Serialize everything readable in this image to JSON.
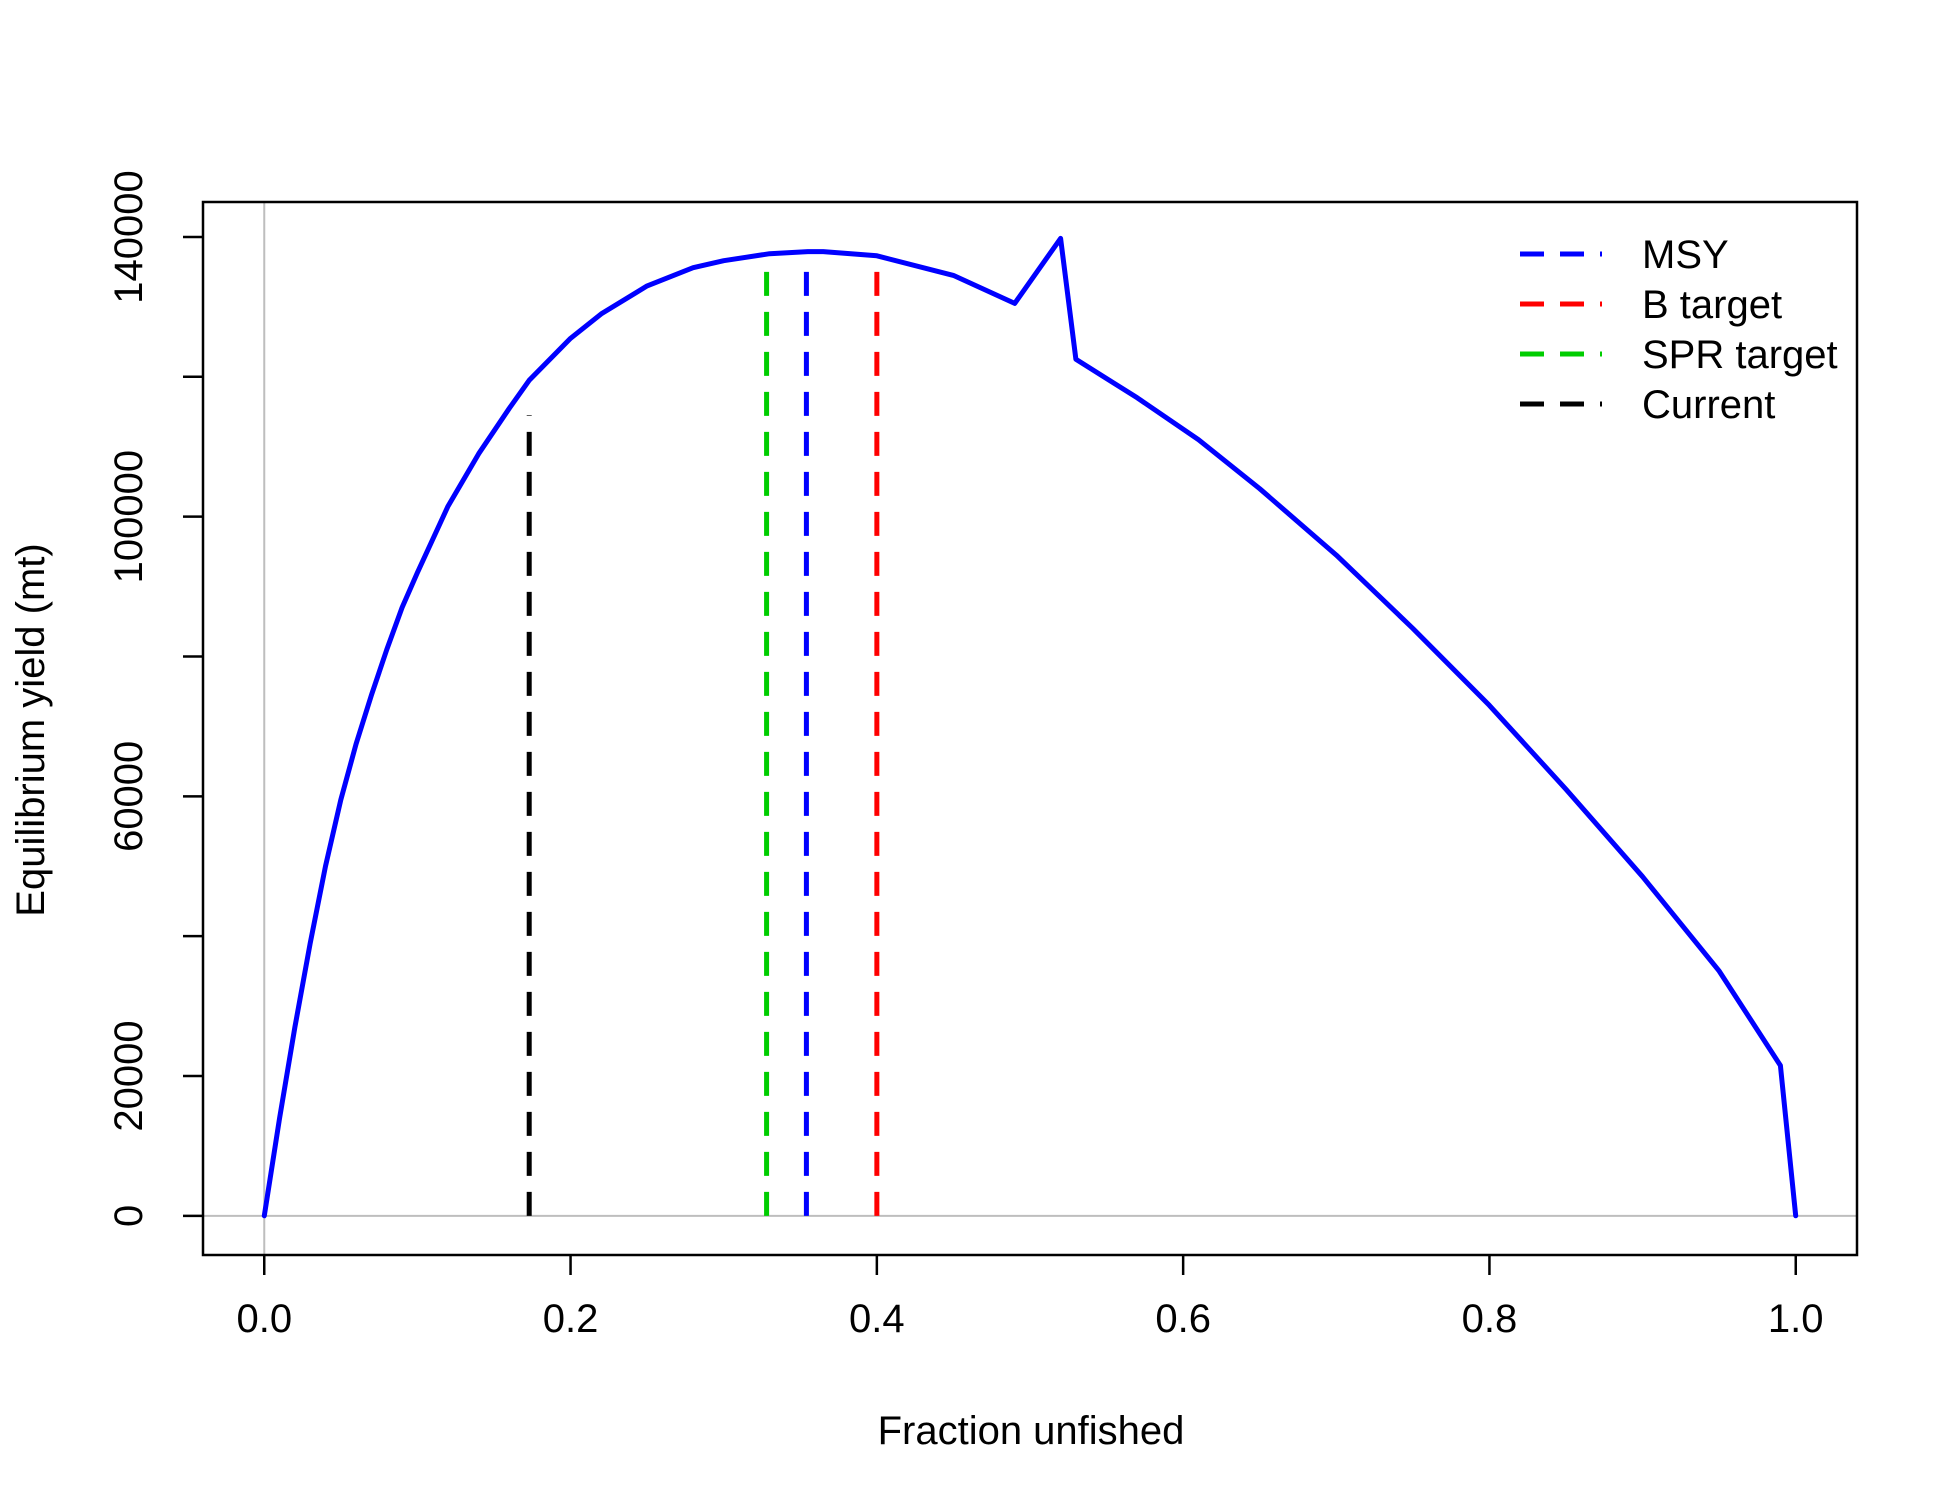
{
  "chart_data": {
    "type": "line",
    "title": "",
    "xlabel": "Fraction unfished",
    "ylabel": "Equilibrium yield (mt)",
    "xlim": [
      -0.04,
      1.04
    ],
    "ylim": [
      -5600,
      145000
    ],
    "x_ticks": [
      {
        "value": 0.0,
        "label": "0.0"
      },
      {
        "value": 0.2,
        "label": "0.2"
      },
      {
        "value": 0.4,
        "label": "0.4"
      },
      {
        "value": 0.6,
        "label": "0.6"
      },
      {
        "value": 0.8,
        "label": "0.8"
      },
      {
        "value": 1.0,
        "label": "1.0"
      }
    ],
    "y_ticks": [
      {
        "value": 0,
        "label": "0"
      },
      {
        "value": 20000,
        "label": "20000"
      },
      {
        "value": 40000,
        "label": ""
      },
      {
        "value": 60000,
        "label": "60000"
      },
      {
        "value": 80000,
        "label": ""
      },
      {
        "value": 100000,
        "label": "100000"
      },
      {
        "value": 120000,
        "label": ""
      },
      {
        "value": 140000,
        "label": "140000"
      }
    ],
    "grid": false,
    "reference_lines": {
      "x": 0,
      "y": 0,
      "color": "#bebebe"
    },
    "legend": {
      "position": "top-right",
      "entries": [
        {
          "label": "MSY",
          "color": "#0000ff",
          "style": "dashed"
        },
        {
          "label": "B target",
          "color": "#ff0000",
          "style": "dashed"
        },
        {
          "label": "SPR target",
          "color": "#00cd00",
          "style": "dashed"
        },
        {
          "label": "Current",
          "color": "#000000",
          "style": "dashed"
        }
      ]
    },
    "series": [
      {
        "color": "#0000ff",
        "style": "solid",
        "x": [
          0.0,
          0.01,
          0.02,
          0.03,
          0.04,
          0.05,
          0.06,
          0.07,
          0.08,
          0.09,
          0.1,
          0.12,
          0.14,
          0.16,
          0.173,
          0.2,
          0.22,
          0.25,
          0.28,
          0.3,
          0.33,
          0.355,
          0.365,
          0.4,
          0.45,
          0.49,
          0.52,
          0.53,
          0.57,
          0.61,
          0.65,
          0.7,
          0.75,
          0.8,
          0.85,
          0.9,
          0.95,
          0.99,
          1.0
        ],
        "values": [
          0,
          14000,
          27000,
          39000,
          50000,
          59500,
          67500,
          74500,
          81000,
          87000,
          92000,
          101500,
          109000,
          115500,
          119500,
          125500,
          129000,
          133000,
          135600,
          136600,
          137600,
          137900,
          137900,
          137300,
          134500,
          130500,
          139800,
          122500,
          117000,
          111000,
          104000,
          94500,
          84000,
          73000,
          61000,
          48500,
          35000,
          21500,
          0
        ]
      }
    ],
    "vertical_lines": [
      {
        "x": 0.173,
        "y_top": 114500,
        "color": "#000000",
        "series_ref": "Current"
      },
      {
        "x": 0.328,
        "y_top": 135600,
        "color": "#00cd00",
        "series_ref": "SPR target"
      },
      {
        "x": 0.354,
        "y_top": 135800,
        "color": "#0000ff",
        "series_ref": "MSY"
      },
      {
        "x": 0.4,
        "y_top": 135200,
        "color": "#ff0000",
        "series_ref": "B target"
      }
    ]
  }
}
